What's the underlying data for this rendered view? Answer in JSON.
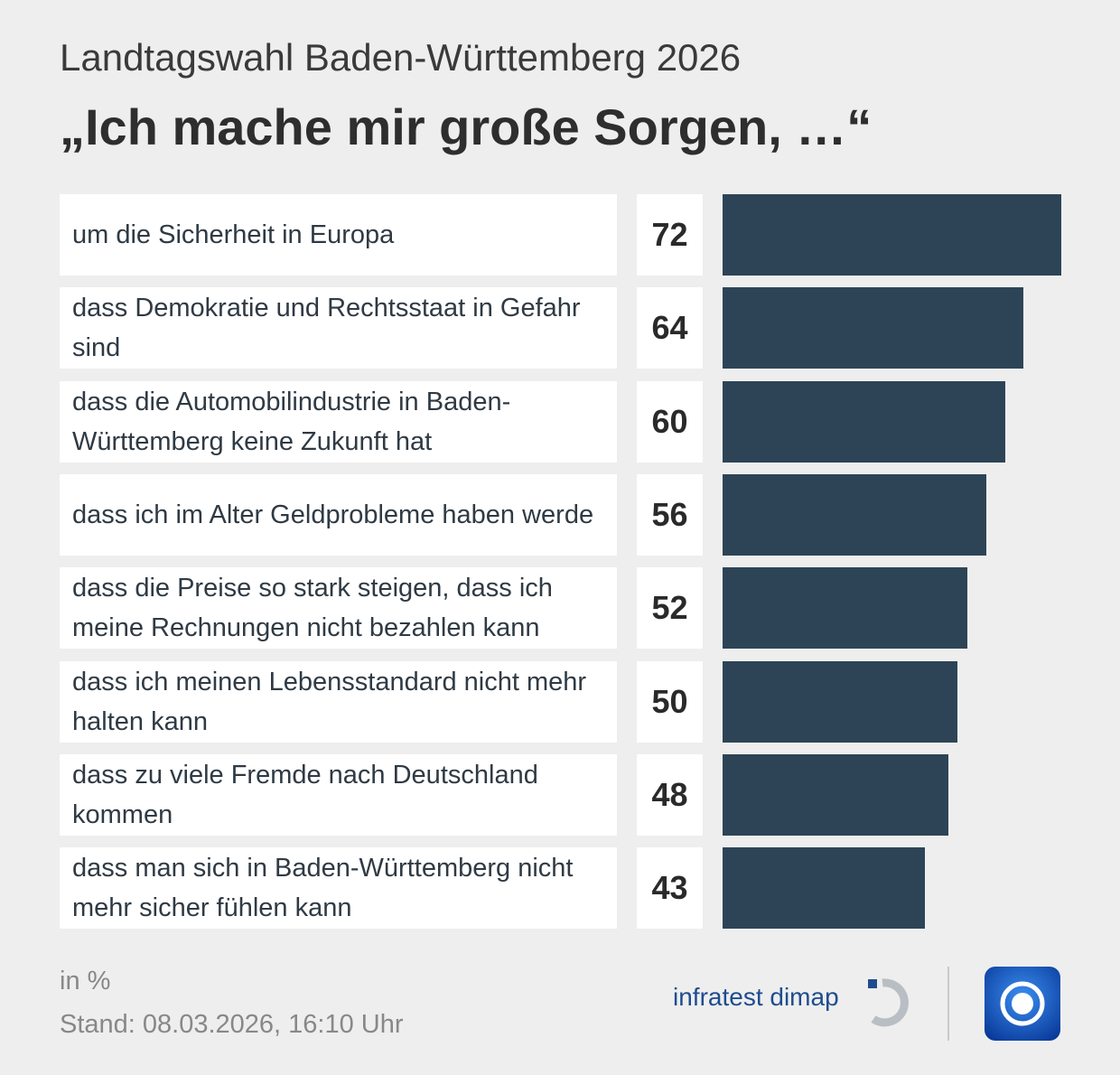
{
  "chart_data": {
    "type": "bar",
    "orientation": "horizontal",
    "subtitle": "Landtagswahl Baden-Württemberg 2026",
    "title": "„Ich mache mir große Sorgen, …“",
    "categories": [
      "um die Sicherheit in Europa",
      "dass Demokratie und Rechtsstaat in Gefahr sind",
      "dass die Automobilindustrie in Baden-Württemberg keine Zukunft hat",
      "dass ich im Alter Geldprobleme haben werde",
      "dass die Preise so stark steigen, dass ich meine Rechnungen nicht bezahlen kann",
      "dass ich meinen Lebensstandard nicht mehr halten kann",
      "dass zu viele Fremde nach Deutschland kommen",
      "dass man sich in Baden-Württemberg nicht mehr sicher fühlen kann"
    ],
    "values": [
      72,
      64,
      60,
      56,
      52,
      50,
      48,
      43
    ],
    "color": "#2c4456",
    "unit_note": "in %",
    "date_note": "Stand:  08.03.2026, 16:10 Uhr",
    "source": "infratest dimap"
  }
}
